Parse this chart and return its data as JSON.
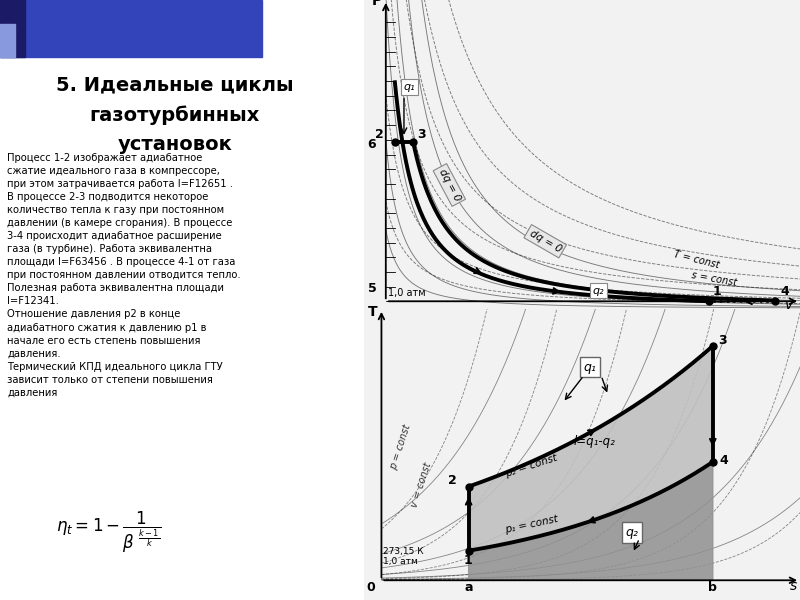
{
  "title_line1": "5. Идеальные циклы",
  "title_line2": "газотурбинных",
  "title_line3": "установок",
  "bg_color": "#FFFFFF",
  "header_blue": "#3344BB",
  "header_dark": "#1A1A66",
  "header_light": "#8899DD",
  "text_body": "Процесс 1-2 изображает адиабатное\nсжатие идеального газа в компрессоре,\nпри этом затрачивается работа l=F12651 .\nВ процессе 2-3 подводится некоторое\nколичество тепла к газу при постоянном\nдавлении (в камере сгорания). В процессе\n3-4 происходит адиабатное расширение\nгаза (в турбине). Работа эквивалентна\nплощади l=F63456 . В процессе 4-1 от газа\nпри постоянном давлении отводится тепло.\nПолезная работа эквивалентна площади\nl=F12341.\nОтношение давления р2 в конце\nадиабатного сжатия к давлению р1 в\nначале его есть степень повышения\nдавления.\nТермический КПД идеального цикла ГТУ\nзависит только от степени повышения\nдавления",
  "diagram_pv_label_p": "P",
  "diagram_pv_label_v": "v",
  "diagram_ts_label_t": "T",
  "diagram_ts_label_s": "s",
  "pv_label6": "6",
  "pv_label5": "5",
  "pv_label10atm": "1,0 атм",
  "ts_label_1atm": "1,0 атм",
  "ts_label_273": "273,15 К",
  "ts_label_p1": "p₁ = const",
  "ts_label_p2": "p₂ = const",
  "ts_label_l": "l=q₁-q₂",
  "ts_label_q1_box": "q₁",
  "ts_label_q2_box": "q₂",
  "ts_label_q1_pv": "q₁",
  "ts_label_q2_pv": "q₂",
  "pv_T_const": "T = const",
  "pv_s_const": "s = const",
  "pv_dq0_1": "dq = 0",
  "pv_dq0_2": "dq = 0",
  "ts_p_const1": "p = const",
  "ts_p_const2": "v = const",
  "label_0": "0",
  "label_a": "a",
  "label_b": "b"
}
